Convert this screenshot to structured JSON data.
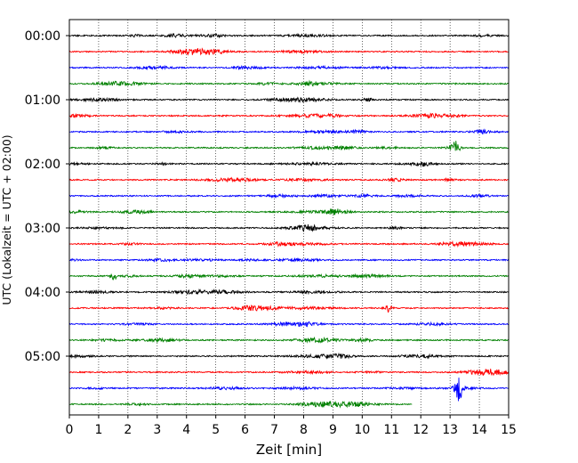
{
  "chart_data": {
    "type": "line",
    "title": "",
    "xlabel": "Zeit  [min]",
    "ylabel": "UTC (Lokalzeit = UTC + 02:00)",
    "xlim": [
      0,
      15
    ],
    "x_ticks": [
      "0",
      "1",
      "2",
      "3",
      "4",
      "5",
      "6",
      "7",
      "8",
      "9",
      "10",
      "11",
      "12",
      "13",
      "14",
      "15"
    ],
    "y_ticks": [
      "00:00",
      "01:00",
      "02:00",
      "03:00",
      "04:00",
      "05:00"
    ],
    "grid": "vertical dotted",
    "trace_interval_min": 15,
    "color_cycle": [
      "#000000",
      "#ff0000",
      "#0000ff",
      "#008000"
    ],
    "series": [
      {
        "start": "00:00",
        "end_min": 15
      },
      {
        "start": "00:15",
        "end_min": 15
      },
      {
        "start": "00:30",
        "end_min": 15
      },
      {
        "start": "00:45",
        "end_min": 15
      },
      {
        "start": "01:00",
        "end_min": 15
      },
      {
        "start": "01:15",
        "end_min": 15
      },
      {
        "start": "01:30",
        "end_min": 15
      },
      {
        "start": "01:45",
        "end_min": 15,
        "events": [
          {
            "x": 13.2,
            "amp": 7
          }
        ]
      },
      {
        "start": "02:00",
        "end_min": 15
      },
      {
        "start": "02:15",
        "end_min": 15
      },
      {
        "start": "02:30",
        "end_min": 15
      },
      {
        "start": "02:45",
        "end_min": 15
      },
      {
        "start": "03:00",
        "end_min": 15
      },
      {
        "start": "03:15",
        "end_min": 15
      },
      {
        "start": "03:30",
        "end_min": 15
      },
      {
        "start": "03:45",
        "end_min": 15,
        "events": [
          {
            "x": 1.5,
            "amp": 5
          }
        ]
      },
      {
        "start": "04:00",
        "end_min": 15
      },
      {
        "start": "04:15",
        "end_min": 15,
        "events": [
          {
            "x": 10.9,
            "amp": 4
          }
        ]
      },
      {
        "start": "04:30",
        "end_min": 15
      },
      {
        "start": "04:45",
        "end_min": 15
      },
      {
        "start": "05:00",
        "end_min": 15
      },
      {
        "start": "05:15",
        "end_min": 15
      },
      {
        "start": "05:30",
        "end_min": 15,
        "events": [
          {
            "x": 13.3,
            "amp": 14
          }
        ]
      },
      {
        "start": "05:45",
        "end_min": 11.7
      }
    ]
  }
}
